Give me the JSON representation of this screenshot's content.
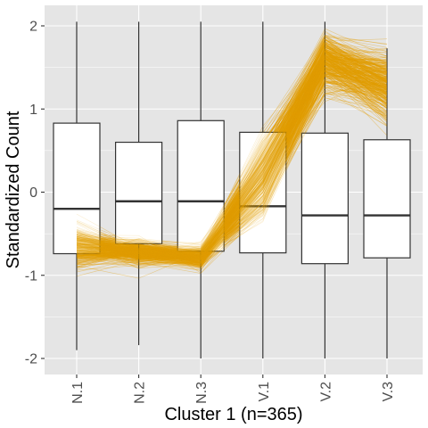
{
  "chart_data": {
    "type": "boxplot",
    "overlay": "parallel-coordinates-lines",
    "xlabel": "Cluster 1 (n=365)",
    "ylabel": "Standardized Count",
    "categories": [
      "N.1",
      "N.2",
      "N.3",
      "V.1",
      "V.2",
      "V.3"
    ],
    "ylim": [
      -2.15,
      2.1
    ],
    "y_ticks": [
      -2,
      -1,
      0,
      1,
      2
    ],
    "grid": true,
    "background": "#e5e5e5",
    "line_color": "#e69f00",
    "n_lines": 365,
    "boxes": [
      {
        "category": "N.1",
        "whisker_low": -1.9,
        "q1": -0.74,
        "median": -0.2,
        "q3": 0.83,
        "whisker_high": 2.05
      },
      {
        "category": "N.2",
        "whisker_low": -1.84,
        "q1": -0.62,
        "median": -0.11,
        "q3": 0.6,
        "whisker_high": 2.05
      },
      {
        "category": "N.3",
        "whisker_low": -2.0,
        "q1": -0.71,
        "median": -0.11,
        "q3": 0.86,
        "whisker_high": 2.05
      },
      {
        "category": "V.1",
        "whisker_low": -2.0,
        "q1": -0.73,
        "median": -0.17,
        "q3": 0.72,
        "whisker_high": 2.05
      },
      {
        "category": "V.2",
        "whisker_low": -2.0,
        "q1": -0.86,
        "median": -0.28,
        "q3": 0.71,
        "whisker_high": 2.05
      },
      {
        "category": "V.3",
        "whisker_low": -2.0,
        "q1": -0.79,
        "median": -0.28,
        "q3": 0.63,
        "whisker_high": 1.73
      }
    ],
    "cluster_profile": {
      "mean": [
        -0.65,
        -0.72,
        -0.78,
        0.2,
        1.6,
        1.28
      ],
      "spread": [
        0.2,
        0.12,
        0.12,
        0.32,
        0.24,
        0.3
      ]
    }
  }
}
